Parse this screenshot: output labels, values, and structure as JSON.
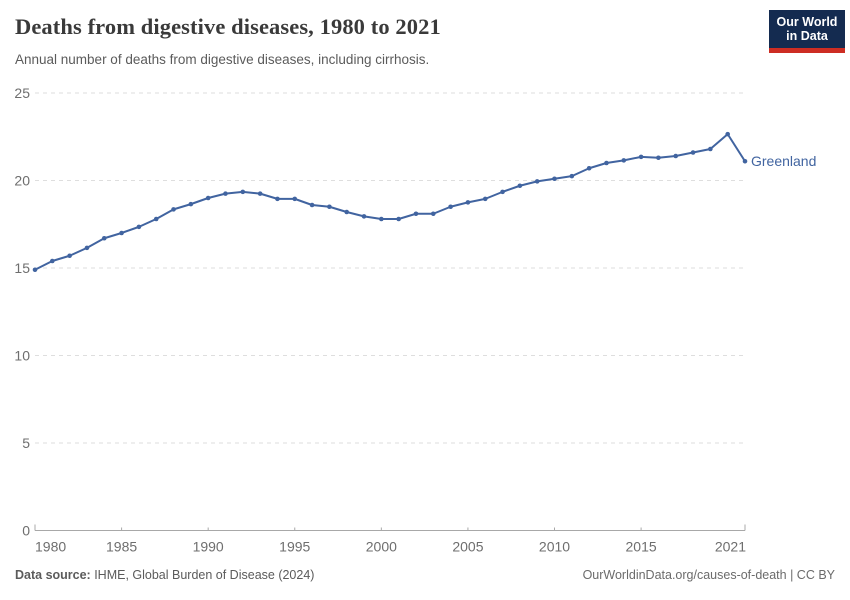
{
  "header": {
    "title": "Deaths from digestive diseases, 1980 to 2021",
    "subtitle": "Annual number of deaths from digestive diseases, including cirrhosis.",
    "logo": {
      "line1": "Our World",
      "line2": "in Data",
      "bg_color": "#142b50",
      "bar_color": "#cd2d23"
    }
  },
  "chart_data": {
    "type": "line",
    "title": "Deaths from digestive diseases, 1980 to 2021",
    "xlabel": "",
    "ylabel": "",
    "xlim": [
      1980,
      2021
    ],
    "ylim": [
      0,
      25
    ],
    "x_ticks": [
      1980,
      1985,
      1990,
      1995,
      2000,
      2005,
      2010,
      2015,
      2021
    ],
    "y_ticks": [
      0,
      5,
      10,
      15,
      20,
      25
    ],
    "grid": "horizontal-dashed",
    "legend_position": "end-of-line-label",
    "markers": true,
    "series": [
      {
        "name": "Greenland",
        "color": "#4164a0",
        "x": [
          1980,
          1981,
          1982,
          1983,
          1984,
          1985,
          1986,
          1987,
          1988,
          1989,
          1990,
          1991,
          1992,
          1993,
          1994,
          1995,
          1996,
          1997,
          1998,
          1999,
          2000,
          2001,
          2002,
          2003,
          2004,
          2005,
          2006,
          2007,
          2008,
          2009,
          2010,
          2011,
          2012,
          2013,
          2014,
          2015,
          2016,
          2017,
          2018,
          2019,
          2020,
          2021
        ],
        "values": [
          14.9,
          15.4,
          15.7,
          16.15,
          16.7,
          17.0,
          17.35,
          17.8,
          18.35,
          18.65,
          19.0,
          19.25,
          19.35,
          19.25,
          18.95,
          18.95,
          18.6,
          18.5,
          18.2,
          17.95,
          17.8,
          17.8,
          18.1,
          18.1,
          18.5,
          18.75,
          18.95,
          19.35,
          19.7,
          19.95,
          20.1,
          20.25,
          20.7,
          21.0,
          21.15,
          21.35,
          21.3,
          21.4,
          21.6,
          21.8,
          22.65,
          21.1
        ]
      }
    ],
    "colors": {
      "gridline": "#dedede",
      "axis_line": "#a8a8a8",
      "tick_label": "#6e6e6e"
    }
  },
  "footer": {
    "source_label": "Data source:",
    "source_text": " IHME, Global Burden of Disease (2024)",
    "credit": "OurWorldinData.org/causes-of-death | CC BY"
  }
}
